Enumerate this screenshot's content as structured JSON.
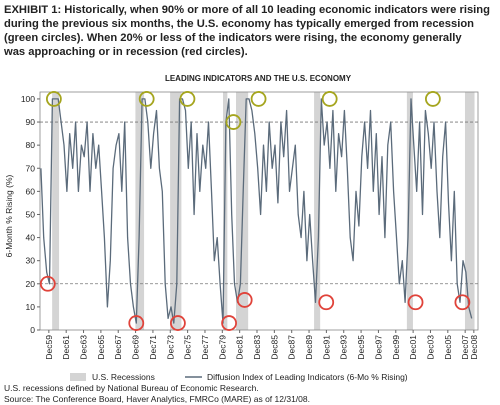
{
  "chart_data": {
    "type": "line",
    "header_lines": [
      "EXHIBIT 1: Historically, when 90% or more of all 10 leading economic indicators were rising",
      "during the previous six months, the U.S. economy has typically emerged from recession",
      "(green circles). When 20% or less of the indicators were rising, the economy generally",
      "was approaching or in recession (red circles)."
    ],
    "title": "LEADING INDICATORS AND THE U.S. ECONOMY",
    "y_label": "6-Month % Rising (%)",
    "footnotes": [
      "U.S. recessions defined by National Bureau of Economic Research.",
      "Source: The Conference Board, Haver Analytics, FMRCo (MARE) as of 12/31/08."
    ],
    "xlim": [
      1958.9,
      2009.4
    ],
    "xticks": [
      {
        "value": 1959.92,
        "label": "Dec59"
      },
      {
        "value": 1961.92,
        "label": "Dec61"
      },
      {
        "value": 1963.92,
        "label": "Dec63"
      },
      {
        "value": 1965.92,
        "label": "Dec65"
      },
      {
        "value": 1967.92,
        "label": "Dec67"
      },
      {
        "value": 1969.92,
        "label": "Dec69"
      },
      {
        "value": 1971.92,
        "label": "Dec71"
      },
      {
        "value": 1973.92,
        "label": "Dec73"
      },
      {
        "value": 1975.92,
        "label": "Dec75"
      },
      {
        "value": 1977.92,
        "label": "Dec77"
      },
      {
        "value": 1979.92,
        "label": "Dec79"
      },
      {
        "value": 1981.92,
        "label": "Dec81"
      },
      {
        "value": 1983.92,
        "label": "Dec83"
      },
      {
        "value": 1985.92,
        "label": "Dec85"
      },
      {
        "value": 1987.92,
        "label": "Dec87"
      },
      {
        "value": 1989.92,
        "label": "Dec89"
      },
      {
        "value": 1991.92,
        "label": "Dec91"
      },
      {
        "value": 1993.92,
        "label": "Dec93"
      },
      {
        "value": 1995.92,
        "label": "Dec95"
      },
      {
        "value": 1997.92,
        "label": "Dec97"
      },
      {
        "value": 1999.92,
        "label": "Dec99"
      },
      {
        "value": 2001.92,
        "label": "Dec01"
      },
      {
        "value": 2003.92,
        "label": "Dec03"
      },
      {
        "value": 2005.92,
        "label": "Dec05"
      },
      {
        "value": 2007.92,
        "label": "Dec07"
      },
      {
        "value": 2008.92,
        "label": "Dec08"
      }
    ],
    "ylim": [
      0,
      103
    ],
    "yticks": [
      0,
      10,
      20,
      30,
      40,
      50,
      60,
      70,
      80,
      90,
      100
    ],
    "reference_lines": [
      90,
      20
    ],
    "recessions": {
      "name": "U.S. Recessions",
      "color": "#d4d4d4",
      "ranges": [
        [
          1960.3,
          1961.1
        ],
        [
          1969.9,
          1970.9
        ],
        [
          1973.9,
          1975.2
        ],
        [
          1980.0,
          1980.5
        ],
        [
          1981.5,
          1982.9
        ],
        [
          1990.5,
          1991.2
        ],
        [
          2001.2,
          2001.9
        ],
        [
          2007.9,
          2009.0
        ]
      ]
    },
    "highlights": [
      {
        "x": 1960.5,
        "y": 100,
        "color": "#a5a51e"
      },
      {
        "x": 1971.2,
        "y": 100,
        "color": "#a5a51e"
      },
      {
        "x": 1975.9,
        "y": 100,
        "color": "#a5a51e"
      },
      {
        "x": 1981.2,
        "y": 90,
        "color": "#a5a51e"
      },
      {
        "x": 1984.1,
        "y": 100,
        "color": "#a5a51e"
      },
      {
        "x": 1992.3,
        "y": 100,
        "color": "#a5a51e"
      },
      {
        "x": 2004.2,
        "y": 100,
        "color": "#a5a51e"
      },
      {
        "x": 1959.8,
        "y": 20,
        "color": "#e0433a"
      },
      {
        "x": 1970.0,
        "y": 3,
        "color": "#e0433a"
      },
      {
        "x": 1974.8,
        "y": 3,
        "color": "#e0433a"
      },
      {
        "x": 1980.7,
        "y": 3,
        "color": "#e0433a"
      },
      {
        "x": 1982.5,
        "y": 13,
        "color": "#e0433a"
      },
      {
        "x": 1991.9,
        "y": 12,
        "color": "#e0433a"
      },
      {
        "x": 2002.2,
        "y": 12,
        "color": "#e0433a"
      },
      {
        "x": 2007.6,
        "y": 12,
        "color": "#e0433a"
      }
    ],
    "x": [
      1959.0,
      1959.33,
      1959.67,
      1960.0,
      1960.33,
      1960.67,
      1961.0,
      1961.33,
      1961.67,
      1962.0,
      1962.33,
      1962.67,
      1963.0,
      1963.33,
      1963.67,
      1964.0,
      1964.33,
      1964.67,
      1965.0,
      1965.33,
      1965.67,
      1966.0,
      1966.33,
      1966.67,
      1967.0,
      1967.33,
      1967.67,
      1968.0,
      1968.33,
      1968.67,
      1969.0,
      1969.33,
      1969.67,
      1970.0,
      1970.33,
      1970.67,
      1971.0,
      1971.33,
      1971.67,
      1972.0,
      1972.33,
      1972.67,
      1973.0,
      1973.33,
      1973.67,
      1974.0,
      1974.33,
      1974.67,
      1975.0,
      1975.33,
      1975.67,
      1976.0,
      1976.33,
      1976.67,
      1977.0,
      1977.33,
      1977.67,
      1978.0,
      1978.33,
      1978.67,
      1979.0,
      1979.33,
      1979.67,
      1980.0,
      1980.33,
      1980.67,
      1981.0,
      1981.33,
      1981.67,
      1982.0,
      1982.33,
      1982.67,
      1983.0,
      1983.33,
      1983.67,
      1984.0,
      1984.33,
      1984.67,
      1985.0,
      1985.33,
      1985.67,
      1986.0,
      1986.33,
      1986.67,
      1987.0,
      1987.33,
      1987.67,
      1988.0,
      1988.33,
      1988.67,
      1989.0,
      1989.33,
      1989.67,
      1990.0,
      1990.33,
      1990.67,
      1991.0,
      1991.33,
      1991.67,
      1992.0,
      1992.33,
      1992.67,
      1993.0,
      1993.33,
      1993.67,
      1994.0,
      1994.33,
      1994.67,
      1995.0,
      1995.33,
      1995.67,
      1996.0,
      1996.33,
      1996.67,
      1997.0,
      1997.33,
      1997.67,
      1998.0,
      1998.33,
      1998.67,
      1999.0,
      1999.33,
      1999.67,
      2000.0,
      2000.33,
      2000.67,
      2001.0,
      2001.33,
      2001.67,
      2002.0,
      2002.33,
      2002.67,
      2003.0,
      2003.33,
      2003.67,
      2004.0,
      2004.33,
      2004.67,
      2005.0,
      2005.33,
      2005.67,
      2006.0,
      2006.33,
      2006.67,
      2007.0,
      2007.33,
      2007.67,
      2008.0,
      2008.33,
      2008.67
    ],
    "series": [
      {
        "name": "Diffusion Index of Leading Indicators (6-Mo % Rising)",
        "color": "#5b6b7b",
        "values": [
          70,
          40,
          25,
          20,
          100,
          100,
          100,
          90,
          80,
          60,
          85,
          70,
          90,
          60,
          80,
          75,
          90,
          60,
          85,
          70,
          80,
          60,
          40,
          10,
          30,
          70,
          80,
          85,
          60,
          90,
          40,
          20,
          10,
          3,
          40,
          100,
          100,
          90,
          70,
          85,
          95,
          70,
          60,
          20,
          5,
          10,
          3,
          20,
          100,
          100,
          95,
          70,
          90,
          50,
          85,
          60,
          80,
          70,
          90,
          60,
          30,
          40,
          20,
          3,
          90,
          100,
          50,
          20,
          12,
          20,
          60,
          100,
          100,
          95,
          85,
          70,
          50,
          80,
          60,
          90,
          70,
          80,
          55,
          90,
          75,
          95,
          60,
          70,
          80,
          50,
          40,
          60,
          30,
          50,
          30,
          12,
          40,
          100,
          80,
          90,
          70,
          95,
          60,
          85,
          75,
          95,
          70,
          40,
          30,
          60,
          45,
          75,
          90,
          70,
          95,
          60,
          85,
          50,
          75,
          40,
          80,
          90,
          60,
          40,
          20,
          30,
          12,
          40,
          100,
          80,
          60,
          90,
          50,
          95,
          85,
          70,
          90,
          60,
          40,
          75,
          90,
          55,
          30,
          60,
          20,
          12,
          30,
          25,
          10,
          5
        ]
      }
    ]
  }
}
